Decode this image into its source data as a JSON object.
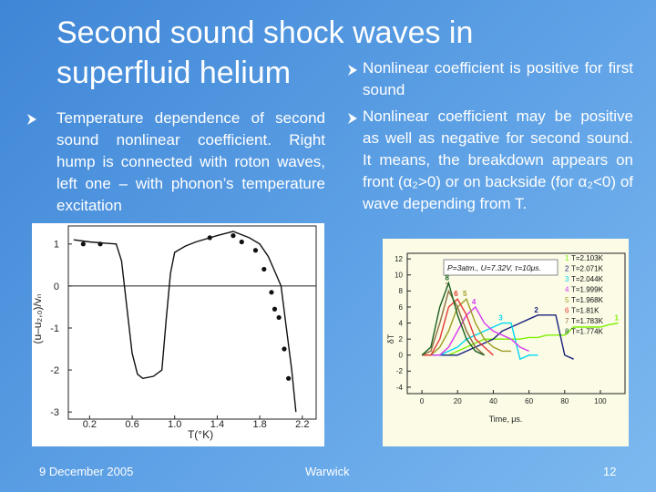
{
  "slide": {
    "title": "Second sound shock waves in superfluid helium",
    "left_bullet": "Temperature dependence of second sound nonlinear coefficient. Right hump is connected with roton waves, left one – with phonon’s temperature excitation",
    "right_bullets": [
      "Nonlinear coefficient is positive for first sound",
      "Nonlinear coefficient may be positive as well as negative for second sound. It means, the breakdown appears on front (α₂>0) or on backside (for α₂<0) of wave depending from T."
    ],
    "footer": {
      "date": "9 December 2005",
      "place": "Warwick",
      "page": "12"
    }
  },
  "chart_data": [
    {
      "type": "line",
      "xlabel": "T(°K)",
      "ylabel": "(u–u₂,₀)/vₙ",
      "xlim": [
        0,
        2.33
      ],
      "ylim": [
        -3.17,
        1.43
      ],
      "xticks": [
        0.2,
        0.6,
        {
          "value": 1.0,
          "label": "1.0"
        },
        1.4,
        1.8,
        2.2
      ],
      "yticks": [
        1,
        0,
        -1,
        -2,
        -3
      ],
      "zero_line": true,
      "background": "#ffffff",
      "series": [
        {
          "color": "#111111",
          "x": [
            0.05,
            0.2,
            0.35,
            0.45,
            0.5,
            0.55,
            0.6,
            0.65,
            0.7,
            0.8,
            0.88,
            0.92,
            0.96,
            1.0,
            1.1,
            1.2,
            1.4,
            1.55,
            1.7,
            1.8,
            1.88,
            1.95,
            2.0,
            2.05,
            2.1,
            2.14
          ],
          "values": [
            1.1,
            1.05,
            1.02,
            1.0,
            0.6,
            -0.5,
            -1.6,
            -2.1,
            -2.2,
            -2.15,
            -2.0,
            -0.8,
            0.3,
            0.8,
            0.95,
            1.05,
            1.2,
            1.3,
            1.15,
            1.0,
            0.7,
            0.3,
            0,
            -1,
            -2,
            -3
          ]
        },
        {
          "color": "#111111",
          "markers": true,
          "x": [
            0.14,
            0.3,
            1.33,
            1.55,
            1.63,
            1.76,
            1.84,
            1.91,
            1.94,
            1.98,
            2.03,
            2.07
          ],
          "values": [
            1.0,
            1.0,
            1.15,
            1.2,
            1.05,
            0.85,
            0.4,
            -0.15,
            -0.55,
            -0.75,
            -1.5,
            -2.2
          ]
        }
      ]
    },
    {
      "type": "line",
      "xlabel": "Time, μs.",
      "ylabel": "δT",
      "annotation": "P=3atm., U=7.32V, τ=10μs.",
      "xlim": [
        -8.2,
        113.8
      ],
      "ylim": [
        -4.8,
        12.7
      ],
      "xticks": [
        0,
        20,
        40,
        60,
        80,
        100
      ],
      "yticks": [
        12,
        10,
        8,
        6,
        4,
        2,
        0,
        -2,
        -4
      ],
      "background": "#fbfbe6",
      "x": [
        0,
        5,
        10,
        15,
        20,
        25,
        30,
        35,
        40,
        45,
        50,
        55,
        60,
        65,
        70,
        75,
        80,
        85,
        90,
        95,
        100,
        105,
        110
      ],
      "series": [
        {
          "label": "1",
          "name": "T=2.103K",
          "color": "#7cf000",
          "values": [
            0,
            0,
            0,
            0,
            0.5,
            1,
            1.5,
            2,
            2,
            2,
            2,
            2,
            2.2,
            2.2,
            2.5,
            2.5,
            2.5,
            3.5,
            3.5,
            3.5,
            3.5,
            3.8,
            4
          ]
        },
        {
          "label": "2",
          "name": "T=2.071K",
          "color": "#1a237e",
          "values": [
            0,
            0,
            0,
            0,
            0,
            0.5,
            1,
            1.5,
            2,
            3,
            3.5,
            4,
            4.5,
            5,
            5,
            5,
            0,
            -0.5,
            null,
            null,
            null,
            null,
            null
          ]
        },
        {
          "label": "3",
          "name": "T=2.044K",
          "color": "#00d8f0",
          "values": [
            0,
            0,
            0,
            0.5,
            1,
            2,
            2.5,
            3,
            3.5,
            4,
            4,
            -0.5,
            0,
            0,
            null,
            null,
            null,
            null,
            null,
            null,
            null,
            null,
            null
          ]
        },
        {
          "label": "4",
          "name": "T=1.999K",
          "color": "#d63cf0",
          "values": [
            0,
            0,
            0,
            1,
            3,
            5,
            6,
            4,
            3,
            2.5,
            2,
            1,
            0.5,
            null,
            null,
            null,
            null,
            null,
            null,
            null,
            null,
            null,
            null
          ]
        },
        {
          "label": "5",
          "name": "T=1.968K",
          "color": "#9e9d24",
          "values": [
            0,
            0,
            1,
            3,
            6,
            7,
            4,
            2,
            1,
            0.5,
            0.5,
            null,
            null,
            null,
            null,
            null,
            null,
            null,
            null,
            null,
            null,
            null,
            null
          ]
        },
        {
          "label": "6",
          "name": "T=1.81K",
          "color": "#e53935",
          "values": [
            0,
            0,
            2,
            6,
            7,
            5,
            2,
            1,
            0,
            null,
            null,
            null,
            null,
            null,
            null,
            null,
            null,
            null,
            null,
            null,
            null,
            null,
            null
          ]
        },
        {
          "label": "7",
          "name": "T=1.783K",
          "color": "#8d6e3f",
          "values": [
            0,
            0.5,
            4,
            8,
            6,
            3,
            1,
            0,
            null,
            null,
            null,
            null,
            null,
            null,
            null,
            null,
            null,
            null,
            null,
            null,
            null,
            null,
            null
          ]
        },
        {
          "label": "8",
          "name": "T=1.774K",
          "color": "#1b5e20",
          "values": [
            0,
            1,
            6,
            9,
            5,
            2,
            0.5,
            0,
            null,
            null,
            null,
            null,
            null,
            null,
            null,
            null,
            null,
            null,
            null,
            null,
            null,
            null,
            null
          ]
        }
      ]
    }
  ]
}
